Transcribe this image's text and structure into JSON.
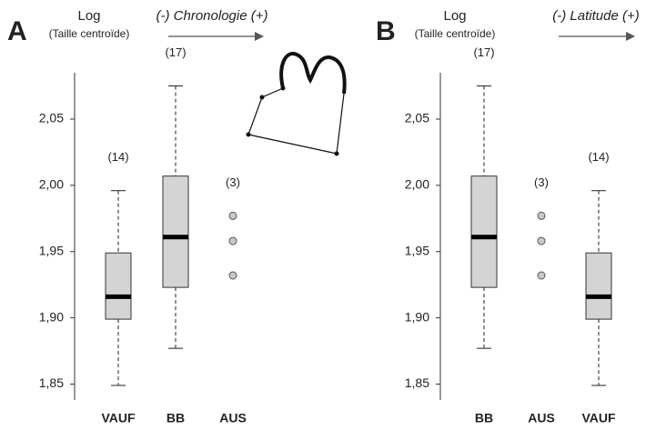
{
  "chart_data": [
    {
      "type": "box",
      "panel_label": "A",
      "title": "Log",
      "subtitle": "(Taille centroïde)",
      "annotation": "(-) Chronologie (+)",
      "ylim": [
        1.838,
        2.085
      ],
      "yticks": [
        {
          "value": 1.85,
          "label": "1,85"
        },
        {
          "value": 1.9,
          "label": "1,90"
        },
        {
          "value": 1.95,
          "label": "1,95"
        },
        {
          "value": 2.0,
          "label": "2,00"
        },
        {
          "value": 2.05,
          "label": "2,05"
        }
      ],
      "box_color": "#d4d4d4",
      "point_color": "#c8c8c8",
      "groups": [
        {
          "name": "VAUF",
          "count_label": "(14)",
          "whisker_low": 1.849,
          "q1": 1.899,
          "median": 1.916,
          "q3": 1.949,
          "whisker_high": 1.996
        },
        {
          "name": "BB",
          "count_label": "(17)",
          "whisker_low": 1.877,
          "q1": 1.923,
          "median": 1.961,
          "q3": 2.007,
          "whisker_high": 2.075
        },
        {
          "name": "AUS",
          "count_label": "(3)",
          "points": [
            1.977,
            1.958,
            1.932
          ]
        }
      ]
    },
    {
      "type": "box",
      "panel_label": "B",
      "title": "Log",
      "subtitle": "(Taille centroïde)",
      "annotation": "(-) Latitude (+)",
      "ylim": [
        1.838,
        2.085
      ],
      "yticks": [
        {
          "value": 1.85,
          "label": "1,85"
        },
        {
          "value": 1.9,
          "label": "1,90"
        },
        {
          "value": 1.95,
          "label": "1,95"
        },
        {
          "value": 2.0,
          "label": "2,00"
        },
        {
          "value": 2.05,
          "label": "2,05"
        }
      ],
      "box_color": "#d4d4d4",
      "point_color": "#c8c8c8",
      "groups": [
        {
          "name": "BB",
          "count_label": "(17)",
          "whisker_low": 1.877,
          "q1": 1.923,
          "median": 1.961,
          "q3": 2.007,
          "whisker_high": 2.075
        },
        {
          "name": "AUS",
          "count_label": "(3)",
          "points": [
            1.977,
            1.958,
            1.932
          ]
        },
        {
          "name": "VAUF",
          "count_label": "(14)",
          "whisker_low": 1.849,
          "q1": 1.899,
          "median": 1.916,
          "q3": 1.949,
          "whisker_high": 1.996
        }
      ]
    }
  ]
}
